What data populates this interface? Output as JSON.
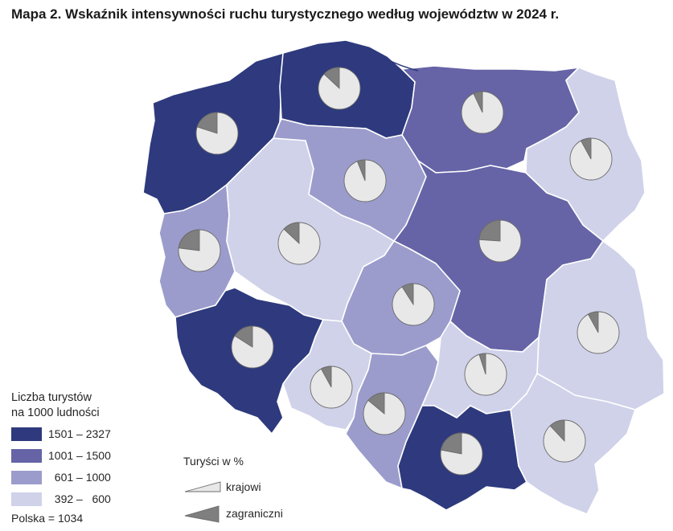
{
  "title": "Mapa 2. Wskaźnik intensywności ruchu turystycznego według województw w 2024 r.",
  "legend": {
    "title_line1": "Liczba turystów",
    "title_line2": "na 1000 ludności",
    "classes": [
      {
        "label": "1501 – 2327",
        "color": "#2e3a7d"
      },
      {
        "label": "1001 – 1500",
        "color": "#6664a6"
      },
      {
        "label": "  601 – 1000",
        "color": "#9b9ccc"
      },
      {
        "label": "  392 –   600",
        "color": "#d0d2ea"
      }
    ],
    "polska": "Polska = 1034"
  },
  "pie_legend": {
    "title": "Turyści w %",
    "domestic": "krajowi",
    "foreign": "zagraniczni"
  },
  "colors": {
    "domestic": "#e8e8e8",
    "foreign": "#7f7f7f",
    "border": "#ffffff"
  },
  "map_data": {
    "voivodeships": [
      {
        "id": "zachodniopomorskie",
        "class": 0,
        "foreign_share": 0.2
      },
      {
        "id": "pomorskie",
        "class": 0,
        "foreign_share": 0.13
      },
      {
        "id": "warminsko-mazurskie",
        "class": 1,
        "foreign_share": 0.07
      },
      {
        "id": "podlaskie",
        "class": 3,
        "foreign_share": 0.08
      },
      {
        "id": "lubuskie",
        "class": 2,
        "foreign_share": 0.23
      },
      {
        "id": "wielkopolskie",
        "class": 3,
        "foreign_share": 0.13
      },
      {
        "id": "kujawsko-pomorskie",
        "class": 2,
        "foreign_share": 0.06
      },
      {
        "id": "mazowieckie",
        "class": 1,
        "foreign_share": 0.24
      },
      {
        "id": "lodzkie",
        "class": 2,
        "foreign_share": 0.09
      },
      {
        "id": "lubelskie",
        "class": 3,
        "foreign_share": 0.08
      },
      {
        "id": "dolnoslaskie",
        "class": 0,
        "foreign_share": 0.16
      },
      {
        "id": "opolskie",
        "class": 3,
        "foreign_share": 0.08
      },
      {
        "id": "slaskie",
        "class": 2,
        "foreign_share": 0.14
      },
      {
        "id": "swietokrzyskie",
        "class": 3,
        "foreign_share": 0.05
      },
      {
        "id": "malopolskie",
        "class": 0,
        "foreign_share": 0.22
      },
      {
        "id": "podkarpackie",
        "class": 3,
        "foreign_share": 0.12
      }
    ]
  }
}
